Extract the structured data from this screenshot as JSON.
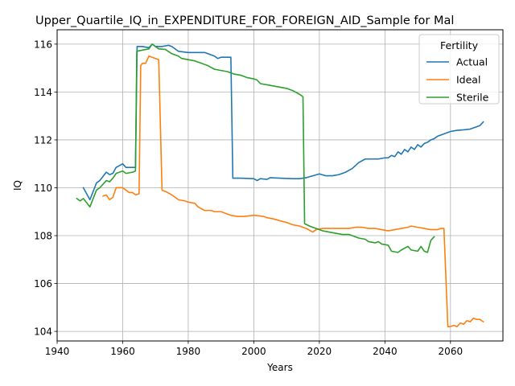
{
  "chart_data": {
    "type": "line",
    "title": "Upper_Quartile_IQ_in_EXPENDITURE_FOR_FOREIGN_AID_Sample for Mal",
    "xlabel": "Years",
    "ylabel": "IQ",
    "xlim": [
      1940,
      2076
    ],
    "ylim": [
      103.6,
      116.6
    ],
    "xticks": [
      1940,
      1960,
      1980,
      2000,
      2020,
      2040,
      2060
    ],
    "yticks": [
      104,
      106,
      108,
      110,
      112,
      114,
      116
    ],
    "grid": true,
    "legend": {
      "title": "Fertility",
      "placement": "top-right"
    },
    "series": [
      {
        "name": "Actual",
        "color": "#1f77b4",
        "points": [
          [
            1948,
            110.0
          ],
          [
            1950,
            109.5
          ],
          [
            1952,
            110.2
          ],
          [
            1953,
            110.3
          ],
          [
            1955,
            110.65
          ],
          [
            1956,
            110.55
          ],
          [
            1957,
            110.6
          ],
          [
            1958,
            110.85
          ],
          [
            1960,
            111.0
          ],
          [
            1961,
            110.85
          ],
          [
            1963,
            110.85
          ],
          [
            1963.9,
            110.85
          ],
          [
            1964.4,
            115.9
          ],
          [
            1966,
            115.9
          ],
          [
            1968,
            115.85
          ],
          [
            1969,
            116.0
          ],
          [
            1970,
            115.9
          ],
          [
            1972,
            115.9
          ],
          [
            1974,
            115.95
          ],
          [
            1975,
            115.9
          ],
          [
            1977,
            115.7
          ],
          [
            1980,
            115.65
          ],
          [
            1985,
            115.65
          ],
          [
            1988,
            115.5
          ],
          [
            1989,
            115.4
          ],
          [
            1990,
            115.45
          ],
          [
            1993,
            115.45
          ],
          [
            1993.6,
            110.4
          ],
          [
            1996,
            110.4
          ],
          [
            2000,
            110.38
          ],
          [
            2001,
            110.3
          ],
          [
            2002,
            110.38
          ],
          [
            2004,
            110.35
          ],
          [
            2005,
            110.42
          ],
          [
            2008,
            110.4
          ],
          [
            2012,
            110.38
          ],
          [
            2014,
            110.38
          ],
          [
            2016,
            110.42
          ],
          [
            2018,
            110.5
          ],
          [
            2020,
            110.58
          ],
          [
            2022,
            110.5
          ],
          [
            2024,
            110.5
          ],
          [
            2026,
            110.55
          ],
          [
            2028,
            110.65
          ],
          [
            2030,
            110.8
          ],
          [
            2032,
            111.05
          ],
          [
            2034,
            111.2
          ],
          [
            2036,
            111.2
          ],
          [
            2038,
            111.2
          ],
          [
            2040,
            111.25
          ],
          [
            2041,
            111.25
          ],
          [
            2042,
            111.35
          ],
          [
            2043,
            111.3
          ],
          [
            2044,
            111.5
          ],
          [
            2045,
            111.4
          ],
          [
            2046,
            111.6
          ],
          [
            2047,
            111.5
          ],
          [
            2048,
            111.7
          ],
          [
            2049,
            111.6
          ],
          [
            2050,
            111.8
          ],
          [
            2051,
            111.7
          ],
          [
            2052,
            111.85
          ],
          [
            2053,
            111.9
          ],
          [
            2054,
            112.0
          ],
          [
            2055,
            112.05
          ],
          [
            2056,
            112.15
          ],
          [
            2057,
            112.2
          ],
          [
            2058,
            112.25
          ],
          [
            2059,
            112.3
          ],
          [
            2060,
            112.35
          ],
          [
            2062,
            112.4
          ],
          [
            2064,
            112.42
          ],
          [
            2066,
            112.45
          ],
          [
            2068,
            112.55
          ],
          [
            2069,
            112.6
          ],
          [
            2070,
            112.75
          ]
        ]
      },
      {
        "name": "Ideal",
        "color": "#ff7f0e",
        "points": [
          [
            1954,
            109.65
          ],
          [
            1955,
            109.7
          ],
          [
            1956,
            109.5
          ],
          [
            1957,
            109.6
          ],
          [
            1958,
            110.0
          ],
          [
            1960,
            110.0
          ],
          [
            1961,
            109.9
          ],
          [
            1962,
            109.8
          ],
          [
            1963,
            109.8
          ],
          [
            1964,
            109.7
          ],
          [
            1965,
            109.75
          ],
          [
            1965.5,
            115.1
          ],
          [
            1966,
            115.2
          ],
          [
            1967,
            115.2
          ],
          [
            1968,
            115.5
          ],
          [
            1969,
            115.45
          ],
          [
            1970,
            115.4
          ],
          [
            1971,
            115.35
          ],
          [
            1972,
            109.9
          ],
          [
            1973,
            109.85
          ],
          [
            1975,
            109.7
          ],
          [
            1977,
            109.5
          ],
          [
            1979,
            109.45
          ],
          [
            1980,
            109.4
          ],
          [
            1982,
            109.35
          ],
          [
            1983,
            109.2
          ],
          [
            1985,
            109.05
          ],
          [
            1987,
            109.05
          ],
          [
            1988,
            109.0
          ],
          [
            1990,
            109.0
          ],
          [
            1991,
            108.95
          ],
          [
            1993,
            108.85
          ],
          [
            1995,
            108.8
          ],
          [
            1997,
            108.8
          ],
          [
            2000,
            108.85
          ],
          [
            2002,
            108.82
          ],
          [
            2003,
            108.8
          ],
          [
            2004,
            108.75
          ],
          [
            2006,
            108.7
          ],
          [
            2008,
            108.62
          ],
          [
            2010,
            108.55
          ],
          [
            2012,
            108.45
          ],
          [
            2014,
            108.4
          ],
          [
            2016,
            108.3
          ],
          [
            2018,
            108.15
          ],
          [
            2019,
            108.25
          ],
          [
            2021,
            108.3
          ],
          [
            2023,
            108.3
          ],
          [
            2025,
            108.3
          ],
          [
            2027,
            108.3
          ],
          [
            2029,
            108.3
          ],
          [
            2031,
            108.35
          ],
          [
            2033,
            108.35
          ],
          [
            2035,
            108.3
          ],
          [
            2037,
            108.3
          ],
          [
            2039,
            108.25
          ],
          [
            2041,
            108.2
          ],
          [
            2043,
            108.25
          ],
          [
            2045,
            108.3
          ],
          [
            2047,
            108.35
          ],
          [
            2048,
            108.4
          ],
          [
            2050,
            108.35
          ],
          [
            2052,
            108.3
          ],
          [
            2054,
            108.25
          ],
          [
            2056,
            108.25
          ],
          [
            2057,
            108.3
          ],
          [
            2058,
            108.3
          ],
          [
            2059.2,
            104.2
          ],
          [
            2060,
            104.2
          ],
          [
            2061,
            104.25
          ],
          [
            2062,
            104.2
          ],
          [
            2063,
            104.35
          ],
          [
            2064,
            104.3
          ],
          [
            2065,
            104.45
          ],
          [
            2066,
            104.4
          ],
          [
            2067,
            104.55
          ],
          [
            2068,
            104.5
          ],
          [
            2069,
            104.5
          ],
          [
            2070,
            104.4
          ]
        ]
      },
      {
        "name": "Sterile",
        "color": "#2ca02c",
        "points": [
          [
            1946,
            109.55
          ],
          [
            1947,
            109.45
          ],
          [
            1948,
            109.55
          ],
          [
            1950,
            109.2
          ],
          [
            1952,
            109.9
          ],
          [
            1953,
            110.0
          ],
          [
            1955,
            110.3
          ],
          [
            1956,
            110.25
          ],
          [
            1957,
            110.4
          ],
          [
            1958,
            110.6
          ],
          [
            1960,
            110.7
          ],
          [
            1961,
            110.6
          ],
          [
            1963,
            110.65
          ],
          [
            1963.9,
            110.7
          ],
          [
            1964.3,
            115.7
          ],
          [
            1966,
            115.75
          ],
          [
            1968,
            115.8
          ],
          [
            1969,
            116.0
          ],
          [
            1970,
            115.9
          ],
          [
            1971,
            115.8
          ],
          [
            1973,
            115.78
          ],
          [
            1975,
            115.6
          ],
          [
            1977,
            115.5
          ],
          [
            1978,
            115.4
          ],
          [
            1980,
            115.35
          ],
          [
            1982,
            115.3
          ],
          [
            1984,
            115.2
          ],
          [
            1986,
            115.1
          ],
          [
            1988,
            114.95
          ],
          [
            1990,
            114.9
          ],
          [
            1992,
            114.85
          ],
          [
            1994,
            114.75
          ],
          [
            1996,
            114.7
          ],
          [
            1998,
            114.6
          ],
          [
            2000,
            114.55
          ],
          [
            2001,
            114.5
          ],
          [
            2002,
            114.35
          ],
          [
            2004,
            114.3
          ],
          [
            2006,
            114.25
          ],
          [
            2008,
            114.2
          ],
          [
            2010,
            114.15
          ],
          [
            2012,
            114.05
          ],
          [
            2014,
            113.9
          ],
          [
            2015,
            113.8
          ],
          [
            2015.5,
            108.5
          ],
          [
            2017,
            108.4
          ],
          [
            2019,
            108.3
          ],
          [
            2021,
            108.2
          ],
          [
            2023,
            108.15
          ],
          [
            2025,
            108.1
          ],
          [
            2027,
            108.05
          ],
          [
            2029,
            108.05
          ],
          [
            2031,
            107.95
          ],
          [
            2032,
            107.9
          ],
          [
            2034,
            107.85
          ],
          [
            2035,
            107.75
          ],
          [
            2037,
            107.7
          ],
          [
            2038,
            107.75
          ],
          [
            2039,
            107.65
          ],
          [
            2041,
            107.6
          ],
          [
            2042,
            107.35
          ],
          [
            2044,
            107.3
          ],
          [
            2045,
            107.4
          ],
          [
            2047,
            107.55
          ],
          [
            2048,
            107.4
          ],
          [
            2050,
            107.35
          ],
          [
            2051,
            107.55
          ],
          [
            2052,
            107.35
          ],
          [
            2053,
            107.3
          ],
          [
            2054,
            107.8
          ],
          [
            2055,
            107.95
          ]
        ]
      }
    ]
  }
}
